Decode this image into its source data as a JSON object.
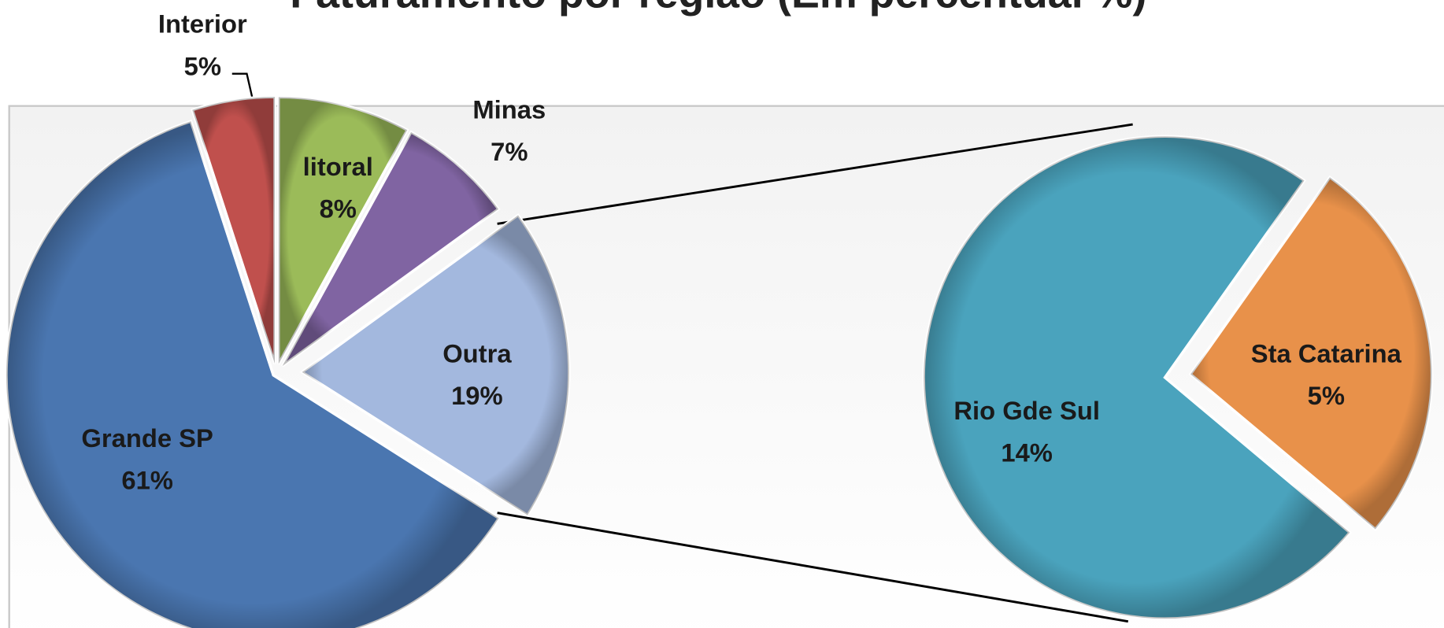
{
  "chart_data": {
    "type": "pie-of-pie",
    "title": "Faturamento por região (Em percentual %)",
    "categories": [
      "Interior",
      "litoral",
      "Minas",
      "Outra",
      "Grande SP"
    ],
    "values": [
      5,
      8,
      7,
      19,
      61
    ],
    "value_labels": [
      "5%",
      "8%",
      "7%",
      "19%",
      "61%"
    ],
    "colors": [
      "#c0504d",
      "#9bbb59",
      "#8064a2",
      "#a3b8de",
      "#4a76b0"
    ],
    "secondary": {
      "categories": [
        "Rio Gde Sul",
        "Sta Catarina"
      ],
      "values": [
        14,
        5
      ],
      "value_labels": [
        "14%",
        "5%"
      ],
      "colors": [
        "#4aa3bd",
        "#e8914a"
      ]
    }
  }
}
